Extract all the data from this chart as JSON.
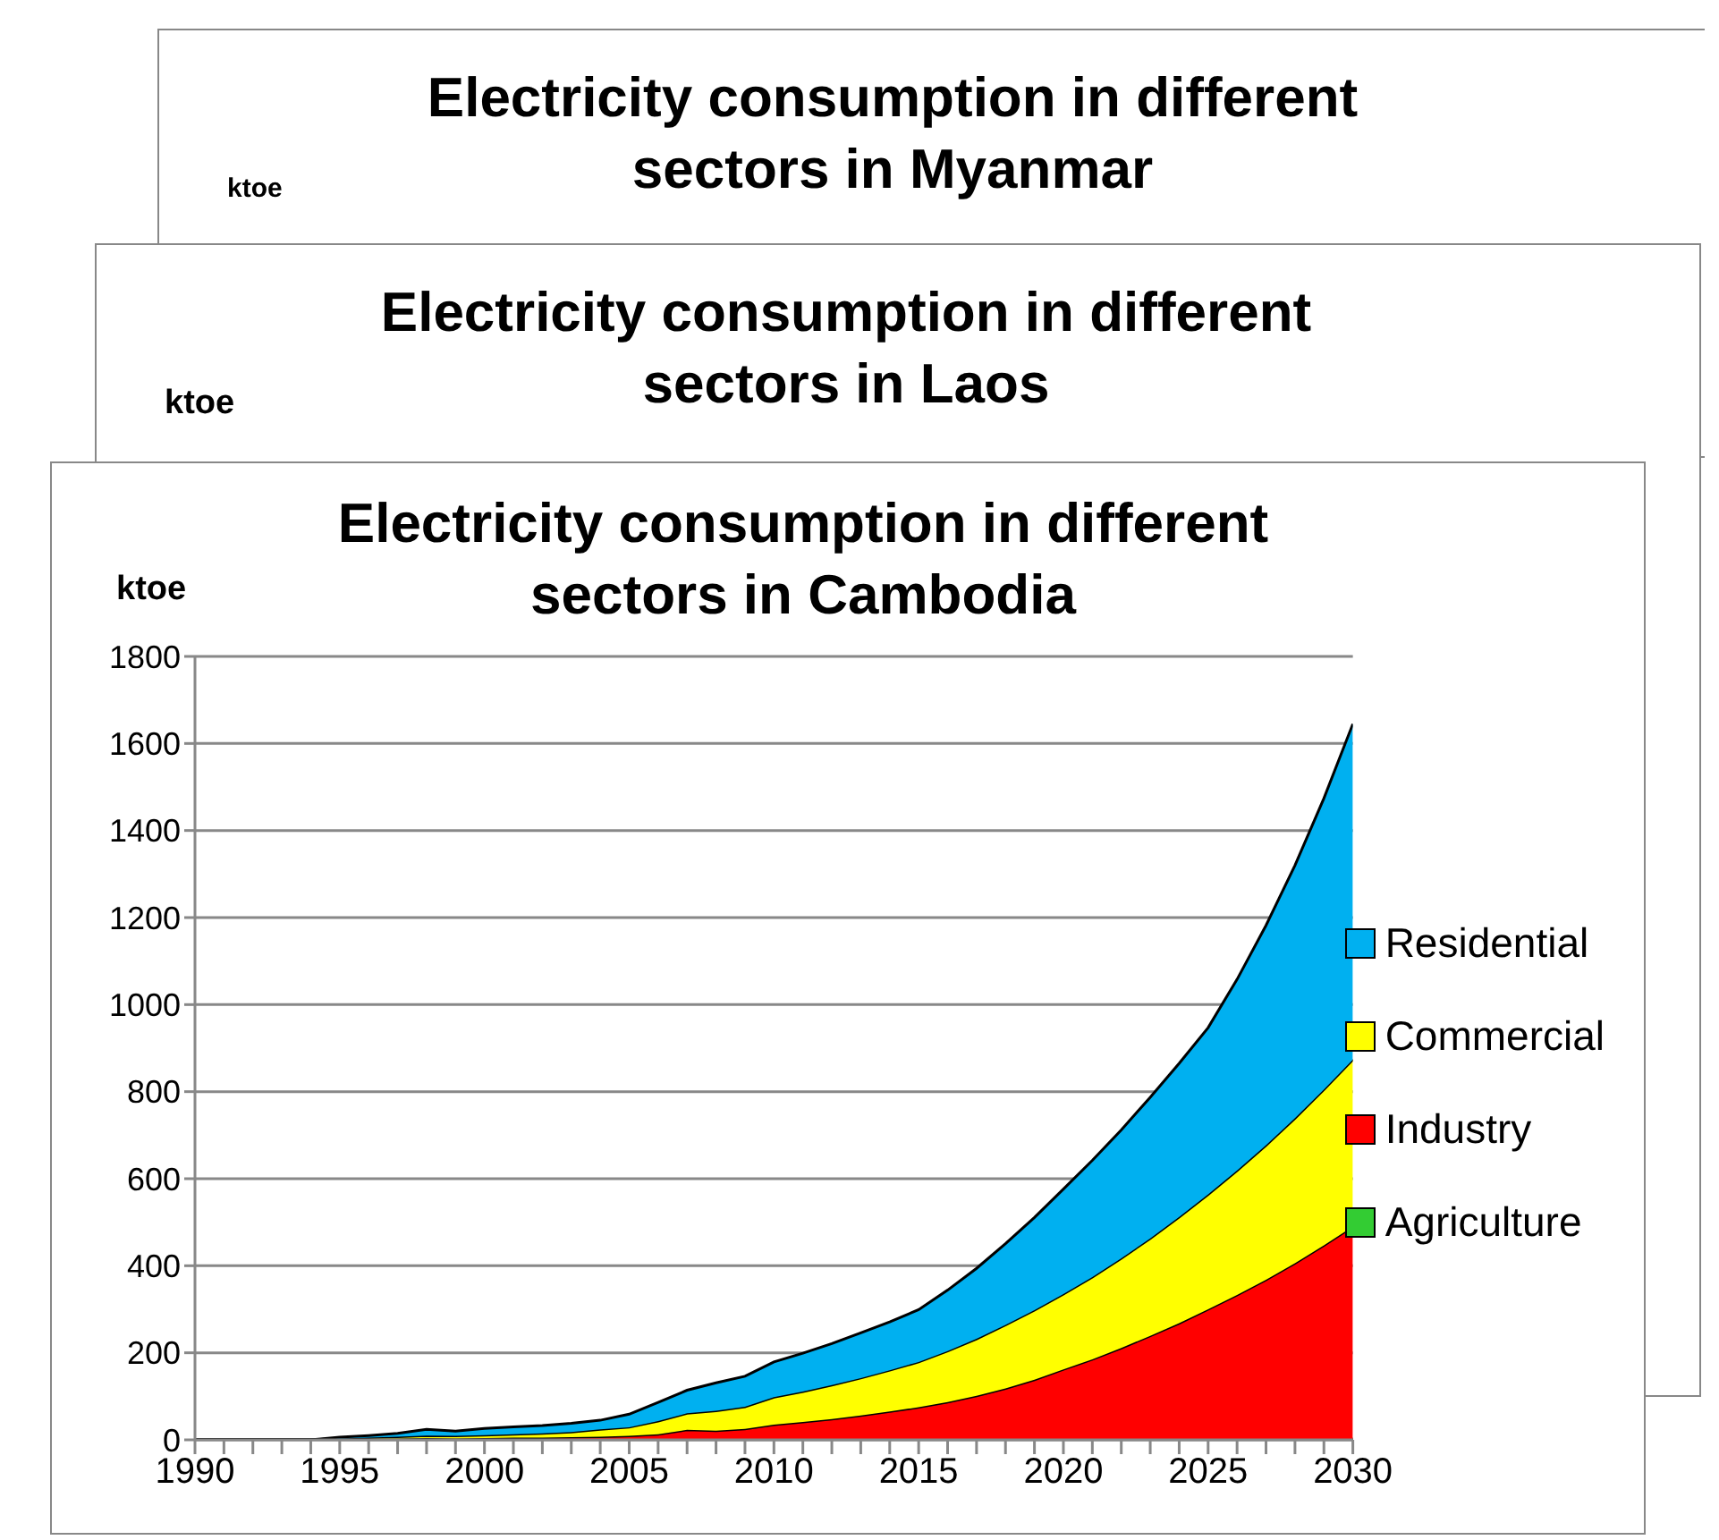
{
  "chart_data": [
    {
      "type": "other",
      "title": "Electricity consumption in different sectors in Myanmar",
      "ylabel": "ktoe"
    },
    {
      "type": "other",
      "title": "Electricity consumption in different sectors in Laos",
      "ylabel": "ktoe"
    },
    {
      "type": "area",
      "title": "Electricity consumption in different sectors in Cambodia",
      "ylabel": "ktoe",
      "stacked": true,
      "grid": "y",
      "legend": "right",
      "x": [
        1990,
        1991,
        1992,
        1993,
        1994,
        1995,
        1996,
        1997,
        1998,
        1999,
        2000,
        2001,
        2002,
        2003,
        2004,
        2005,
        2006,
        2007,
        2008,
        2009,
        2010,
        2011,
        2012,
        2013,
        2014,
        2015,
        2016,
        2017,
        2018,
        2019,
        2020,
        2021,
        2022,
        2023,
        2024,
        2025,
        2026,
        2027,
        2028,
        2029,
        2030
      ],
      "xlim": [
        1990,
        2030
      ],
      "xticks": [
        1990,
        {
          "value": 1991,
          "label": null
        },
        {
          "value": 1992,
          "label": null
        },
        {
          "value": 1993,
          "label": null
        },
        {
          "value": 1994,
          "label": null
        },
        1995,
        {
          "value": 1996,
          "label": null
        },
        {
          "value": 1997,
          "label": null
        },
        {
          "value": 1998,
          "label": null
        },
        {
          "value": 1999,
          "label": null
        },
        2000,
        {
          "value": 2001,
          "label": null
        },
        {
          "value": 2002,
          "label": null
        },
        {
          "value": 2003,
          "label": null
        },
        {
          "value": 2004,
          "label": null
        },
        2005,
        {
          "value": 2006,
          "label": null
        },
        {
          "value": 2007,
          "label": null
        },
        {
          "value": 2008,
          "label": null
        },
        {
          "value": 2009,
          "label": null
        },
        2010,
        {
          "value": 2011,
          "label": null
        },
        {
          "value": 2012,
          "label": null
        },
        {
          "value": 2013,
          "label": null
        },
        {
          "value": 2014,
          "label": null
        },
        2015,
        {
          "value": 2016,
          "label": null
        },
        {
          "value": 2017,
          "label": null
        },
        {
          "value": 2018,
          "label": null
        },
        {
          "value": 2019,
          "label": null
        },
        2020,
        {
          "value": 2021,
          "label": null
        },
        {
          "value": 2022,
          "label": null
        },
        {
          "value": 2023,
          "label": null
        },
        {
          "value": 2024,
          "label": null
        },
        2025,
        {
          "value": 2026,
          "label": null
        },
        {
          "value": 2027,
          "label": null
        },
        {
          "value": 2028,
          "label": null
        },
        {
          "value": 2029,
          "label": null
        },
        2030
      ],
      "ylim": [
        0,
        1800
      ],
      "yticks": [
        0,
        200,
        400,
        600,
        800,
        1000,
        1200,
        1400,
        1600,
        1800
      ],
      "series": [
        {
          "name": "Agriculture",
          "color": "#33cc33",
          "values": [
            0,
            0,
            0,
            0,
            0,
            0,
            0,
            0,
            0,
            0,
            0,
            0,
            0,
            0,
            0,
            1,
            1,
            1,
            1,
            1,
            1,
            1,
            1,
            1,
            1,
            1,
            1,
            1,
            1,
            1,
            2,
            2,
            2,
            2,
            2,
            2,
            2,
            2,
            2,
            2,
            2
          ]
        },
        {
          "name": "Industry",
          "color": "#ff0000",
          "values": [
            0,
            0,
            0,
            0,
            0,
            1,
            2,
            3,
            4,
            3,
            4,
            5,
            5,
            6,
            7,
            8,
            12,
            22,
            20,
            24,
            34,
            40,
            47,
            55,
            64,
            74,
            86,
            100,
            117,
            137,
            160,
            183,
            209,
            237,
            266,
            298,
            331,
            366,
            404,
            445,
            488
          ]
        },
        {
          "name": "Commercial",
          "color": "#ffff00",
          "values": [
            0,
            0,
            0,
            0,
            0,
            2,
            3,
            4,
            6,
            6,
            7,
            8,
            10,
            12,
            17,
            20,
            30,
            38,
            46,
            51,
            63,
            70,
            78,
            86,
            95,
            104,
            117,
            131,
            146,
            160,
            173,
            189,
            206,
            224,
            244,
            264,
            286,
            309,
            333,
            358,
            384
          ]
        },
        {
          "name": "Residential",
          "color": "#00b0f0",
          "values": [
            0,
            0,
            0,
            0,
            0,
            3,
            5,
            8,
            14,
            11,
            15,
            17,
            18,
            20,
            21,
            30,
            43,
            53,
            64,
            70,
            81,
            88,
            95,
            104,
            111,
            120,
            140,
            162,
            187,
            213,
            241,
            268,
            295,
            324,
            353,
            383,
            439,
            505,
            581,
            669,
            771
          ]
        }
      ]
    }
  ]
}
